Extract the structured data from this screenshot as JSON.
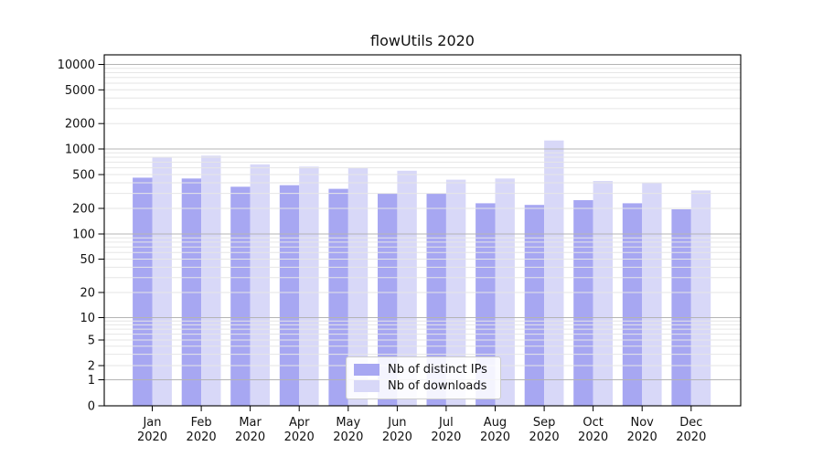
{
  "chart_data": {
    "type": "bar",
    "title": "flowUtils 2020",
    "categories": [
      "Jan",
      "Feb",
      "Mar",
      "Apr",
      "May",
      "Jun",
      "Jul",
      "Aug",
      "Sep",
      "Oct",
      "Nov",
      "Dec"
    ],
    "year_label": "2020",
    "series": [
      {
        "name": "Nb of distinct IPs",
        "color": "#a7a7f2",
        "values": [
          460,
          450,
          360,
          375,
          340,
          300,
          300,
          230,
          220,
          250,
          230,
          195
        ]
      },
      {
        "name": "Nb of downloads",
        "color": "#d8d8f8",
        "values": [
          790,
          835,
          660,
          620,
          595,
          555,
          435,
          450,
          1260,
          420,
          405,
          325
        ]
      }
    ],
    "yscale": "symlog",
    "y_ticks": [
      0,
      1,
      2,
      5,
      10,
      20,
      50,
      100,
      200,
      500,
      1000,
      2000,
      5000,
      10000
    ],
    "ylim": [
      0,
      10000
    ],
    "grid": true,
    "legend_position": "lower center",
    "grid_decade_color": "#b4b4b4",
    "grid_minor_color": "#e6e6e6",
    "axis_color": "#000000",
    "text_color": "#111111"
  }
}
